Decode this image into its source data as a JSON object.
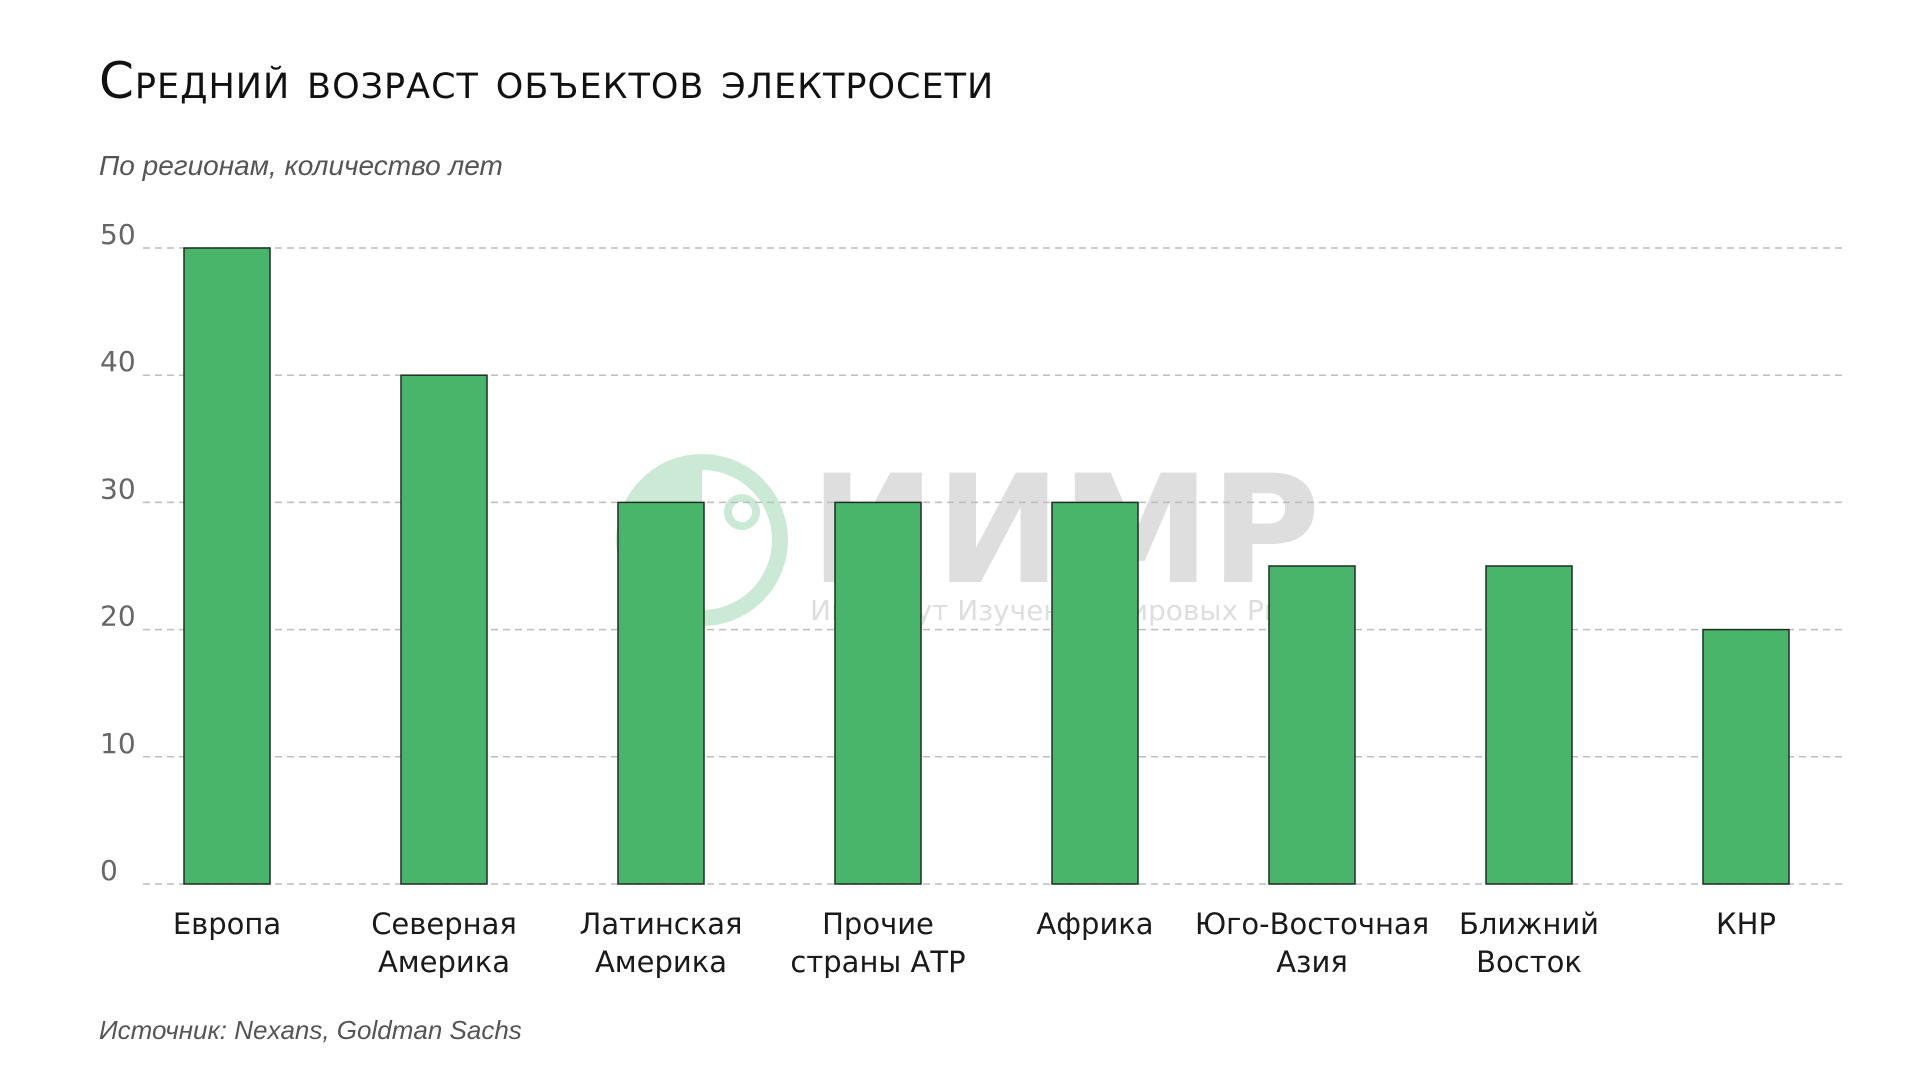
{
  "title": "Средний возраст объектов электросети",
  "subtitle": "По регионам, количество лет",
  "source": "Источник: Nexans, Goldman Sachs",
  "watermark": {
    "logo": "ИИМР",
    "tagline": "Институт Изучения Мировых Рынков"
  },
  "colors": {
    "bar": "#48b56a",
    "bar_stroke": "#1f2f22",
    "grid": "#bdbdbd",
    "tick_text": "#666666",
    "label_text": "#1a1a1a"
  },
  "chart_data": {
    "type": "bar",
    "title": "Средний возраст объектов электросети",
    "subtitle": "По регионам, количество лет",
    "categories": [
      [
        "Европа"
      ],
      [
        "Северная",
        "Америка"
      ],
      [
        "Латинская",
        "Америка"
      ],
      [
        "Прочие",
        "страны АТР"
      ],
      [
        "Африка"
      ],
      [
        "Юго-Восточная",
        "Азия"
      ],
      [
        "Ближний",
        "Восток"
      ],
      [
        "КНР"
      ]
    ],
    "values": [
      50,
      40,
      30,
      30,
      30,
      25,
      25,
      20
    ],
    "ylim": [
      0,
      50
    ],
    "yticks": [
      0,
      10,
      20,
      30,
      40,
      50
    ],
    "grid": true,
    "grid_style": "dashed"
  }
}
